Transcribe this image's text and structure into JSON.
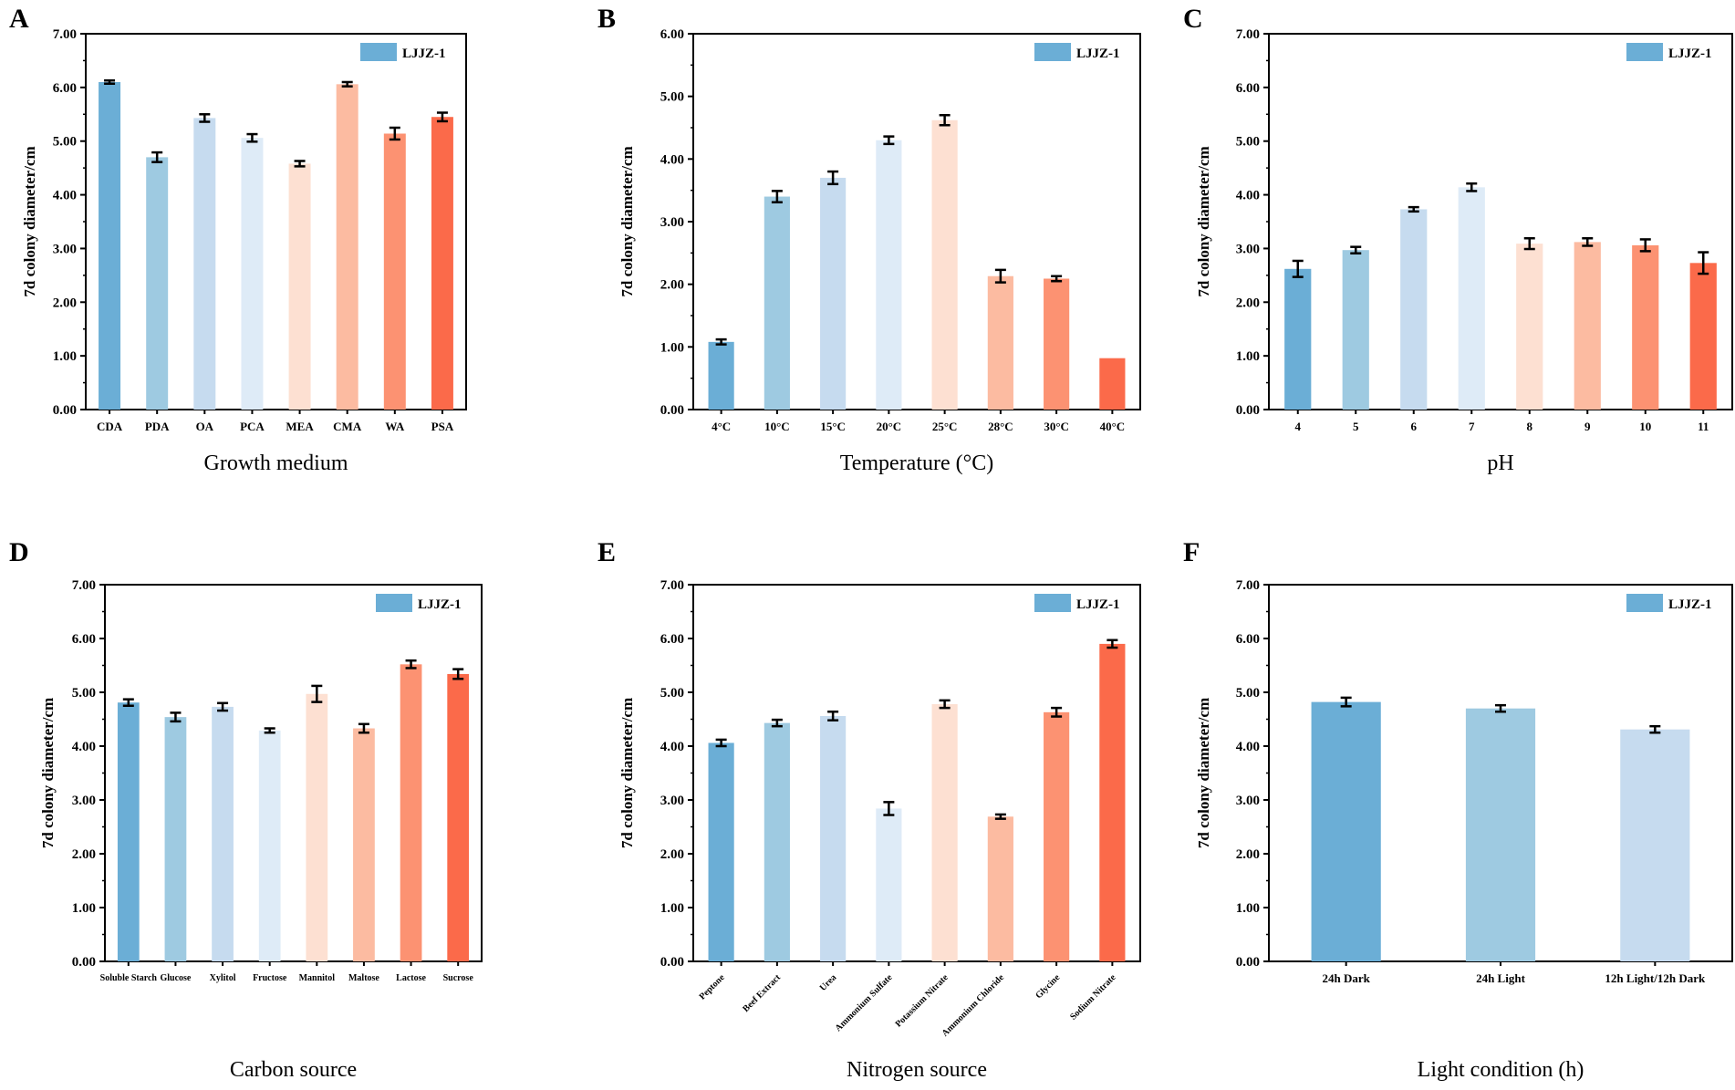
{
  "chart_data": [
    {
      "type": "bar",
      "panel": "A",
      "title": "",
      "xlabel": "Growth medium",
      "ylabel": "7d colony diameter/cm",
      "ylim": [
        0,
        7
      ],
      "yticks": [
        "0.00",
        "1.00",
        "2.00",
        "3.00",
        "4.00",
        "5.00",
        "6.00",
        "7.00"
      ],
      "legend": "LJJZ-1",
      "legend_position": "top-right",
      "categories": [
        "CDA",
        "PDA",
        "OA",
        "PCA",
        "MEA",
        "CMA",
        "WA",
        "PSA"
      ],
      "values": [
        6.1,
        4.7,
        5.43,
        5.06,
        4.58,
        6.06,
        5.14,
        5.45
      ],
      "errors": [
        0.03,
        0.09,
        0.07,
        0.07,
        0.05,
        0.04,
        0.11,
        0.08
      ],
      "colors": [
        "#6baed6",
        "#9ecae1",
        "#c6dbef",
        "#deebf7",
        "#fde0d2",
        "#fcbba1",
        "#fc9272",
        "#fb6a4a"
      ]
    },
    {
      "type": "bar",
      "panel": "B",
      "title": "",
      "xlabel": "Temperature (°C)",
      "ylabel": "7d colony diameter/cm",
      "ylim": [
        0,
        6
      ],
      "yticks": [
        "0.00",
        "1.00",
        "2.00",
        "3.00",
        "4.00",
        "5.00",
        "6.00"
      ],
      "legend": "LJJZ-1",
      "legend_position": "top-right",
      "categories": [
        "4°C",
        "10°C",
        "15°C",
        "20°C",
        "25°C",
        "28°C",
        "30°C",
        "40°C"
      ],
      "values": [
        1.08,
        3.4,
        3.7,
        4.3,
        4.62,
        2.13,
        2.09,
        0.82
      ],
      "errors": [
        0.04,
        0.09,
        0.1,
        0.06,
        0.08,
        0.1,
        0.04,
        0.0
      ],
      "colors": [
        "#6baed6",
        "#9ecae1",
        "#c6dbef",
        "#deebf7",
        "#fde0d2",
        "#fcbba1",
        "#fc9272",
        "#fb6a4a"
      ]
    },
    {
      "type": "bar",
      "panel": "C",
      "title": "",
      "xlabel": "pH",
      "ylabel": "7d colony diameter/cm",
      "ylim": [
        0,
        7
      ],
      "yticks": [
        "0.00",
        "1.00",
        "2.00",
        "3.00",
        "4.00",
        "5.00",
        "6.00",
        "7.00"
      ],
      "legend": "LJJZ-1",
      "legend_position": "top-right",
      "categories": [
        "4",
        "5",
        "6",
        "7",
        "8",
        "9",
        "10",
        "11"
      ],
      "values": [
        2.62,
        2.97,
        3.73,
        4.14,
        3.09,
        3.12,
        3.06,
        2.73
      ],
      "errors": [
        0.15,
        0.06,
        0.04,
        0.07,
        0.1,
        0.07,
        0.11,
        0.2
      ],
      "colors": [
        "#6baed6",
        "#9ecae1",
        "#c6dbef",
        "#deebf7",
        "#fde0d2",
        "#fcbba1",
        "#fc9272",
        "#fb6a4a"
      ]
    },
    {
      "type": "bar",
      "panel": "D",
      "title": "",
      "xlabel": "Carbon source",
      "ylabel": "7d colony diameter/cm",
      "ylim": [
        0,
        7
      ],
      "yticks": [
        "0.00",
        "1.00",
        "2.00",
        "3.00",
        "4.00",
        "5.00",
        "6.00",
        "7.00"
      ],
      "legend": "LJJZ-1",
      "legend_position": "top-right",
      "categories": [
        "Soluble Starch",
        "Glucose",
        "Xylitol",
        "Fructose",
        "Mannitol",
        "Maltose",
        "Lactose",
        "Sucrose"
      ],
      "values": [
        4.81,
        4.54,
        4.73,
        4.29,
        4.97,
        4.33,
        5.52,
        5.34
      ],
      "errors": [
        0.06,
        0.08,
        0.07,
        0.04,
        0.15,
        0.08,
        0.07,
        0.09
      ],
      "colors": [
        "#6baed6",
        "#9ecae1",
        "#c6dbef",
        "#deebf7",
        "#fde0d2",
        "#fcbba1",
        "#fc9272",
        "#fb6a4a"
      ]
    },
    {
      "type": "bar",
      "panel": "E",
      "title": "",
      "xlabel": "Nitrogen source",
      "ylabel": "7d colony diameter/cm",
      "ylim": [
        0,
        7
      ],
      "yticks": [
        "0.00",
        "1.00",
        "2.00",
        "3.00",
        "4.00",
        "5.00",
        "6.00",
        "7.00"
      ],
      "legend": "LJJZ-1",
      "legend_position": "top-right",
      "categories": [
        "Peptone",
        "Beef Extract",
        "Urea",
        "Ammonium Sulfate",
        "Potassium Nitrate",
        "Ammonium Chloride",
        "Glycine",
        "Sodium Nitrate"
      ],
      "values": [
        4.06,
        4.43,
        4.56,
        2.84,
        4.78,
        2.69,
        4.63,
        5.9
      ],
      "errors": [
        0.06,
        0.06,
        0.08,
        0.12,
        0.07,
        0.04,
        0.08,
        0.07
      ],
      "colors": [
        "#6baed6",
        "#9ecae1",
        "#c6dbef",
        "#deebf7",
        "#fde0d2",
        "#fcbba1",
        "#fc9272",
        "#fb6a4a"
      ]
    },
    {
      "type": "bar",
      "panel": "F",
      "title": "",
      "xlabel": "Light condition (h)",
      "ylabel": "7d colony diameter/cm",
      "ylim": [
        0,
        7
      ],
      "yticks": [
        "0.00",
        "1.00",
        "2.00",
        "3.00",
        "4.00",
        "5.00",
        "6.00",
        "7.00"
      ],
      "legend": "LJJZ-1",
      "legend_position": "top-right",
      "categories": [
        "24h Dark",
        "24h Light",
        "12h Light/12h Dark"
      ],
      "values": [
        4.82,
        4.7,
        4.31
      ],
      "errors": [
        0.08,
        0.06,
        0.06
      ],
      "colors": [
        "#6baed6",
        "#9ecae1",
        "#c6dbef"
      ]
    }
  ]
}
